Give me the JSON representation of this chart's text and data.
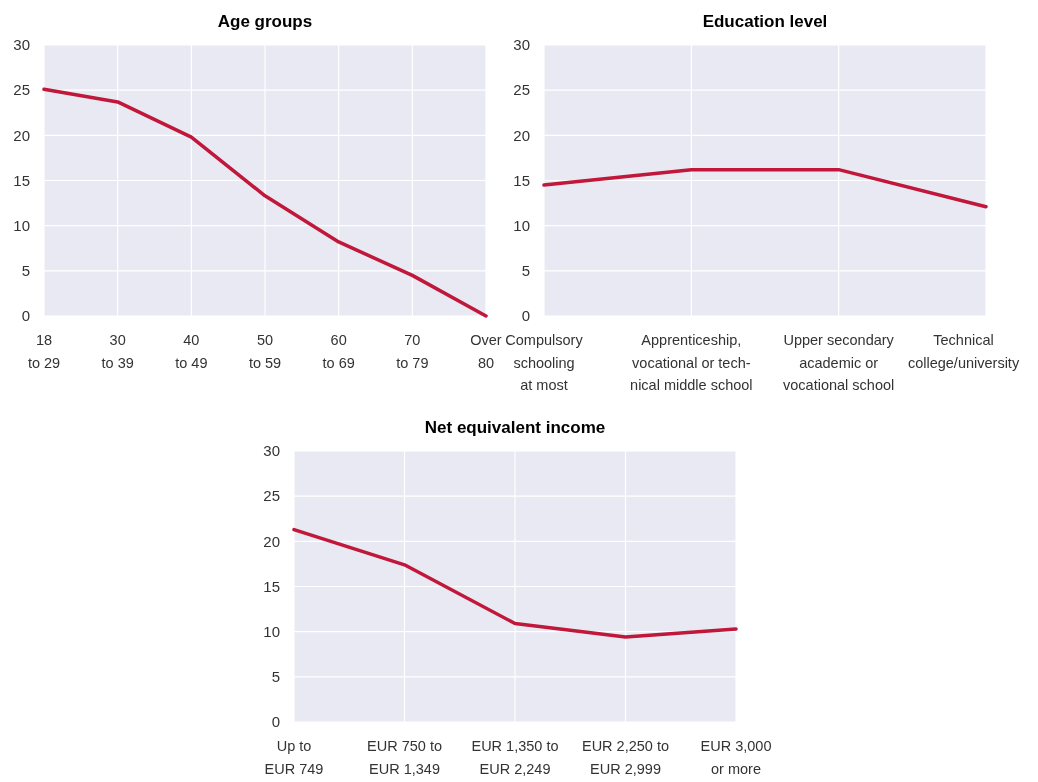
{
  "chart_data": [
    {
      "type": "line",
      "title": "Age groups",
      "categories": [
        "18\nto 29",
        "30\nto 39",
        "40\nto 49",
        "50\nto 59",
        "60\nto 69",
        "70\nto 79",
        "Over\n80"
      ],
      "series": [
        {
          "color": "#c0173a",
          "values": [
            25.1,
            23.7,
            19.8,
            13.3,
            8.2,
            4.5,
            0
          ]
        }
      ],
      "ylim": [
        0,
        30
      ],
      "yticks": [
        0,
        5,
        10,
        15,
        20,
        25,
        30
      ],
      "grid": true
    },
    {
      "type": "line",
      "title": "Education level",
      "categories": [
        "Compulsory\nschooling\nat most",
        "Apprenticeship,\nvocational or tech-\nnical middle school",
        "Upper secondary\nacademic or\nvocational school",
        "Technical\ncollege/university"
      ],
      "series": [
        {
          "color": "#c0173a",
          "values": [
            14.5,
            16.2,
            16.2,
            12.1
          ]
        }
      ],
      "ylim": [
        0,
        30
      ],
      "yticks": [
        0,
        5,
        10,
        15,
        20,
        25,
        30
      ],
      "grid": true
    },
    {
      "type": "line",
      "title": "Net equivalent income",
      "categories": [
        "Up to\nEUR 749",
        "EUR 750 to\nEUR 1,349",
        "EUR 1,350 to\nEUR 2,249",
        "EUR 2,250 to\nEUR 2,999",
        "EUR 3,000\nor more"
      ],
      "series": [
        {
          "color": "#c0173a",
          "values": [
            21.3,
            17.4,
            10.9,
            9.4,
            10.3
          ]
        }
      ],
      "ylim": [
        0,
        30
      ],
      "yticks": [
        0,
        5,
        10,
        15,
        20,
        25,
        30
      ],
      "grid": true
    }
  ]
}
